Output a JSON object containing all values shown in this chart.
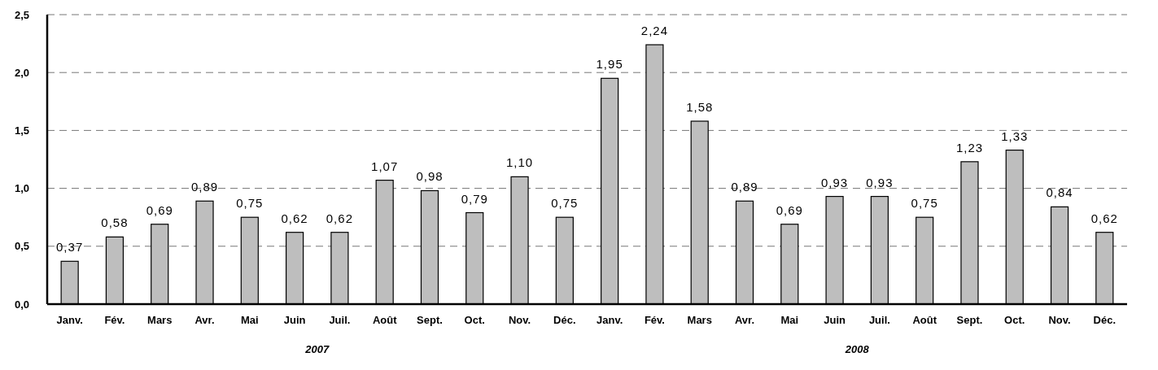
{
  "chart_data": {
    "type": "bar",
    "categories": [
      "Janv.",
      "Fév.",
      "Mars",
      "Avr.",
      "Mai",
      "Juin",
      "Juil.",
      "Août",
      "Sept.",
      "Oct.",
      "Nov.",
      "Déc.",
      "Janv.",
      "Fév.",
      "Mars",
      "Avr.",
      "Mai",
      "Juin",
      "Juil.",
      "Août",
      "Sept.",
      "Oct.",
      "Nov.",
      "Déc."
    ],
    "values": [
      0.37,
      0.58,
      0.69,
      0.89,
      0.75,
      0.62,
      0.62,
      1.07,
      0.98,
      0.79,
      1.1,
      0.75,
      1.95,
      2.24,
      1.58,
      0.89,
      0.69,
      0.93,
      0.93,
      0.75,
      1.23,
      1.33,
      0.84,
      0.62
    ],
    "value_labels": [
      "0,37",
      "0,58",
      "0,69",
      "0,89",
      "0,75",
      "0,62",
      "0,62",
      "1,07",
      "0,98",
      "0,79",
      "1,10",
      "0,75",
      "1,95",
      "2,24",
      "1,58",
      "0,89",
      "0,69",
      "0,93",
      "0,93",
      "0,75",
      "1,23",
      "1,33",
      "0,84",
      "0,62"
    ],
    "color": "#bebebe",
    "ylim": [
      0,
      2.5
    ],
    "yticks": [
      {
        "value": 0,
        "label": "0,0"
      },
      {
        "value": 0.5,
        "label": "0,5"
      },
      {
        "value": 1,
        "label": "1,0"
      },
      {
        "value": 1.5,
        "label": "1,5"
      },
      {
        "value": 2,
        "label": "2,0"
      },
      {
        "value": 2.5,
        "label": "2,5"
      }
    ],
    "grid": "y",
    "annotations": [
      "2007",
      "2008"
    ]
  }
}
